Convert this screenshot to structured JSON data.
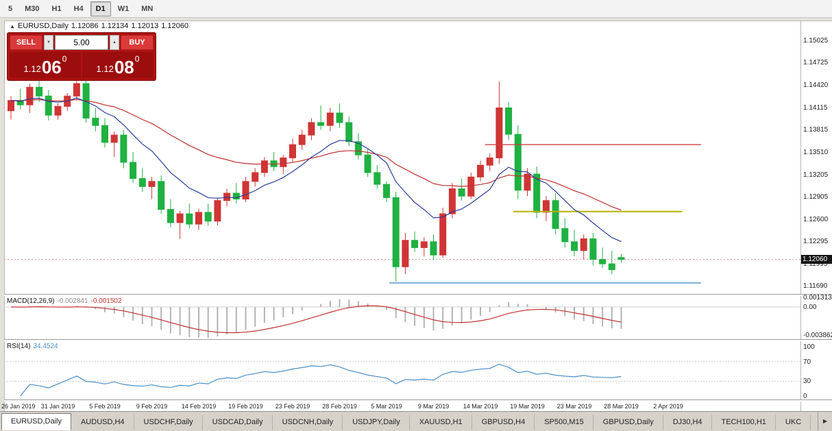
{
  "toolbar": {
    "timeframes": [
      {
        "label": "5",
        "active": false
      },
      {
        "label": "M30",
        "active": false
      },
      {
        "label": "H1",
        "active": false
      },
      {
        "label": "H4",
        "active": false
      },
      {
        "label": "D1",
        "active": true
      },
      {
        "label": "W1",
        "active": false
      },
      {
        "label": "MN",
        "active": false
      }
    ]
  },
  "chart": {
    "symbol_icon": "▲",
    "header": {
      "symbol": "EURUSD,Daily",
      "open": "1.12086",
      "high": "1.12134",
      "low": "1.12013",
      "close": "1.12060"
    },
    "trade_panel": {
      "sell_label": "SELL",
      "buy_label": "BUY",
      "volume": "5.00",
      "spinner_down": "▼",
      "spinner_up": "▲",
      "sell_price": {
        "prefix": "1.12",
        "pips": "06",
        "pipette": "0"
      },
      "buy_price": {
        "prefix": "1.12",
        "pips": "08",
        "pipette": "0"
      }
    },
    "price_axis": [
      "1.15025",
      "1.14725",
      "1.14420",
      "1.14115",
      "1.13815",
      "1.13510",
      "1.13205",
      "1.12905",
      "1.12600",
      "1.12295",
      "1.11995",
      "1.11690"
    ],
    "current_price": "1.12060"
  },
  "macd": {
    "name": "MACD(12,26,9)",
    "value_main": "-0.002841",
    "value_signal": "-0.001502",
    "axis": [
      "0.001313",
      "0.00",
      "-0.003862"
    ]
  },
  "rsi": {
    "name": "RSI(14)",
    "value": "34.4524",
    "axis": [
      "100",
      "70",
      "30",
      "0"
    ]
  },
  "x_axis": {
    "labels": [
      "26 Jan 2019",
      "31 Jan 2019",
      "5 Feb 2019",
      "9 Feb 2019",
      "14 Feb 2019",
      "19 Feb 2019",
      "23 Feb 2019",
      "28 Feb 2019",
      "5 Mar 2019",
      "9 Mar 2019",
      "14 Mar 2019",
      "19 Mar 2019",
      "23 Mar 2019",
      "28 Mar 2019",
      "2 Apr 2019"
    ]
  },
  "tabs": {
    "scroll_right": "▶",
    "items": [
      {
        "label": "EURUSD,Daily",
        "active": true
      },
      {
        "label": "AUDUSD,H4",
        "active": false
      },
      {
        "label": "USDCHF,Daily",
        "active": false
      },
      {
        "label": "USDCAD,Daily",
        "active": false
      },
      {
        "label": "USDCNH,Daily",
        "active": false
      },
      {
        "label": "USDJPY,Daily",
        "active": false
      },
      {
        "label": "XAUUSD,H1",
        "active": false
      },
      {
        "label": "GBPUSD,H4",
        "active": false
      },
      {
        "label": "SP500,M15",
        "active": false
      },
      {
        "label": "GBPUSD,Daily",
        "active": false
      },
      {
        "label": "DJ30,H4",
        "active": false
      },
      {
        "label": "TECH100,H1",
        "active": false
      },
      {
        "label": "UKC",
        "active": false
      }
    ]
  },
  "chart_data": {
    "type": "candlestick",
    "symbol": "EURUSD",
    "timeframe": "Daily",
    "title": "EURUSD,Daily",
    "x_range": [
      "26 Jan 2019",
      "2 Apr 2019"
    ],
    "price_range": [
      1.116,
      1.1525
    ],
    "color_up": "#d03535",
    "color_down": "#1fb141",
    "columns": [
      "open",
      "high",
      "low",
      "close"
    ],
    "candles": [
      [
        1.1408,
        1.1428,
        1.1396,
        1.1422
      ],
      [
        1.1422,
        1.1438,
        1.141,
        1.1416
      ],
      [
        1.1416,
        1.1445,
        1.1405,
        1.144
      ],
      [
        1.144,
        1.1452,
        1.142,
        1.1428
      ],
      [
        1.1428,
        1.1436,
        1.1395,
        1.1402
      ],
      [
        1.1402,
        1.1418,
        1.1396,
        1.1414
      ],
      [
        1.1414,
        1.1432,
        1.1408,
        1.1428
      ],
      [
        1.1428,
        1.145,
        1.1422,
        1.1445
      ],
      [
        1.1445,
        1.1452,
        1.1392,
        1.1398
      ],
      [
        1.1398,
        1.1412,
        1.138,
        1.1388
      ],
      [
        1.1388,
        1.1398,
        1.1358,
        1.1365
      ],
      [
        1.1365,
        1.138,
        1.1345,
        1.1375
      ],
      [
        1.1375,
        1.1382,
        1.133,
        1.1338
      ],
      [
        1.1338,
        1.1352,
        1.131,
        1.1316
      ],
      [
        1.1316,
        1.133,
        1.1298,
        1.1305
      ],
      [
        1.1305,
        1.1318,
        1.1288,
        1.1312
      ],
      [
        1.1312,
        1.132,
        1.1268,
        1.1274
      ],
      [
        1.1274,
        1.1288,
        1.125,
        1.1256
      ],
      [
        1.1256,
        1.1272,
        1.1234,
        1.1268
      ],
      [
        1.1268,
        1.1282,
        1.1248,
        1.1254
      ],
      [
        1.1254,
        1.1275,
        1.1246,
        1.127
      ],
      [
        1.127,
        1.1282,
        1.1252,
        1.1258
      ],
      [
        1.1258,
        1.129,
        1.1252,
        1.1286
      ],
      [
        1.1286,
        1.1302,
        1.1278,
        1.1296
      ],
      [
        1.1296,
        1.131,
        1.1282,
        1.1288
      ],
      [
        1.1288,
        1.1318,
        1.1284,
        1.1312
      ],
      [
        1.1312,
        1.133,
        1.1305,
        1.1324
      ],
      [
        1.1324,
        1.1345,
        1.1318,
        1.134
      ],
      [
        1.134,
        1.1352,
        1.1326,
        1.1332
      ],
      [
        1.1332,
        1.1348,
        1.1322,
        1.1344
      ],
      [
        1.1344,
        1.137,
        1.1338,
        1.1362
      ],
      [
        1.1362,
        1.1382,
        1.1355,
        1.1375
      ],
      [
        1.1375,
        1.1398,
        1.1368,
        1.1392
      ],
      [
        1.1392,
        1.1415,
        1.1382,
        1.1388
      ],
      [
        1.1388,
        1.1412,
        1.138,
        1.1405
      ],
      [
        1.1405,
        1.1418,
        1.1385,
        1.1392
      ],
      [
        1.1392,
        1.14,
        1.136,
        1.1366
      ],
      [
        1.1366,
        1.1378,
        1.1342,
        1.1348
      ],
      [
        1.1348,
        1.1356,
        1.1318,
        1.1324
      ],
      [
        1.1324,
        1.1334,
        1.1302,
        1.1308
      ],
      [
        1.1308,
        1.1312,
        1.1284,
        1.129
      ],
      [
        1.129,
        1.1298,
        1.1176,
        1.1196
      ],
      [
        1.1196,
        1.1242,
        1.1186,
        1.1232
      ],
      [
        1.1232,
        1.1244,
        1.1216,
        1.1222
      ],
      [
        1.1222,
        1.1236,
        1.121,
        1.123
      ],
      [
        1.123,
        1.124,
        1.1205,
        1.1212
      ],
      [
        1.1212,
        1.1276,
        1.1208,
        1.1268
      ],
      [
        1.1268,
        1.131,
        1.1262,
        1.1302
      ],
      [
        1.1302,
        1.1316,
        1.1286,
        1.1292
      ],
      [
        1.1292,
        1.1324,
        1.1288,
        1.1318
      ],
      [
        1.1318,
        1.134,
        1.1312,
        1.1334
      ],
      [
        1.1334,
        1.135,
        1.1326,
        1.1344
      ],
      [
        1.1344,
        1.1448,
        1.1336,
        1.1412
      ],
      [
        1.1412,
        1.142,
        1.1368,
        1.1376
      ],
      [
        1.1376,
        1.1388,
        1.1288,
        1.13
      ],
      [
        1.13,
        1.133,
        1.1292,
        1.1322
      ],
      [
        1.1322,
        1.1332,
        1.1262,
        1.127
      ],
      [
        1.127,
        1.1292,
        1.1258,
        1.1286
      ],
      [
        1.1286,
        1.1296,
        1.124,
        1.1248
      ],
      [
        1.1248,
        1.1262,
        1.1222,
        1.123
      ],
      [
        1.123,
        1.1246,
        1.121,
        1.1218
      ],
      [
        1.1218,
        1.124,
        1.1206,
        1.1234
      ],
      [
        1.1234,
        1.1242,
        1.1198,
        1.1206
      ],
      [
        1.1206,
        1.1222,
        1.1194,
        1.12
      ],
      [
        1.12,
        1.1218,
        1.1186,
        1.1192
      ],
      [
        1.12086,
        1.12134,
        1.12013,
        1.1206
      ]
    ],
    "overlays": {
      "ma_fast": {
        "type": "ema",
        "period": 10,
        "color": "#2b3c9b"
      },
      "ma_slow": {
        "type": "ema",
        "period": 30,
        "color": "#c03030"
      }
    },
    "hlines": [
      {
        "price": 1.1362,
        "color": "#d04040",
        "from_slot": 50.5,
        "to_slot": 73.5,
        "width": 1.4
      },
      {
        "price": 1.1271,
        "color": "#b3b300",
        "from_slot": 53.5,
        "to_slot": 71.5,
        "width": 2
      },
      {
        "price": 1.1174,
        "color": "#4a8fc7",
        "from_slot": 40.3,
        "to_slot": 73.5,
        "width": 1.4
      }
    ],
    "indicators": {
      "macd": {
        "fast": 12,
        "slow": 26,
        "signal": 9,
        "hist_color": "#b4b4b4",
        "signal_color": "#c03030"
      },
      "rsi": {
        "period": 14,
        "color": "#4a8fc7",
        "levels": [
          70,
          30
        ]
      }
    }
  }
}
